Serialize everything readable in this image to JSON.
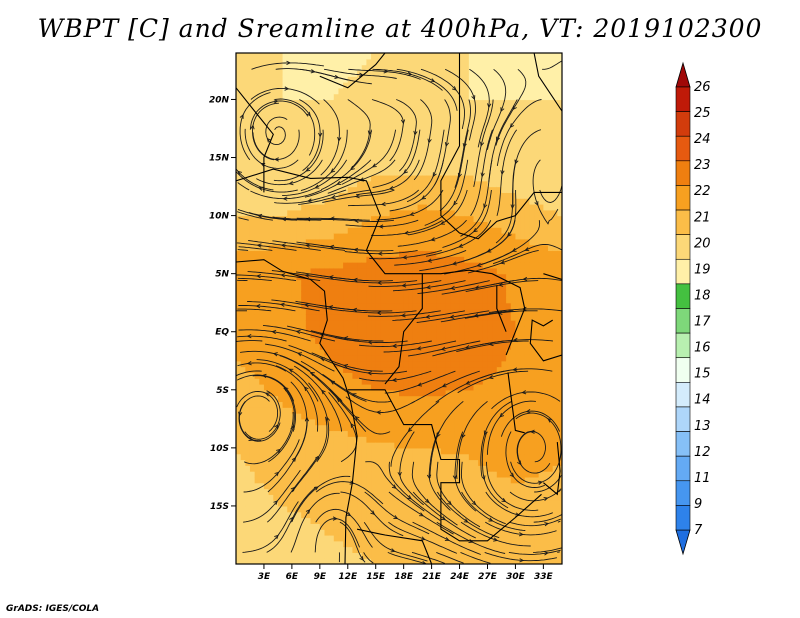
{
  "title": "WBPT [C] and Sreamline at 400hPa, VT: 2019102300",
  "credit": "GrADS: IGES/COLA",
  "chart_data": {
    "type": "heatmap",
    "title": "WBPT [C] and Sreamline at 400hPa, VT: 2019102300",
    "variable": "Wet-bulb potential temperature",
    "units": "C",
    "level": "400hPa",
    "valid_time": "2019102300",
    "xlim": [
      0,
      35
    ],
    "ylim": [
      -20,
      24
    ],
    "x_ticks": [
      {
        "value": 3,
        "label": "3E"
      },
      {
        "value": 6,
        "label": "6E"
      },
      {
        "value": 9,
        "label": "9E"
      },
      {
        "value": 12,
        "label": "12E"
      },
      {
        "value": 15,
        "label": "15E"
      },
      {
        "value": 18,
        "label": "18E"
      },
      {
        "value": 21,
        "label": "21E"
      },
      {
        "value": 24,
        "label": "24E"
      },
      {
        "value": 27,
        "label": "27E"
      },
      {
        "value": 30,
        "label": "30E"
      },
      {
        "value": 33,
        "label": "33E"
      }
    ],
    "y_ticks": [
      {
        "value": 20,
        "label": "20N"
      },
      {
        "value": 15,
        "label": "15N"
      },
      {
        "value": 10,
        "label": "10N"
      },
      {
        "value": 5,
        "label": "5N"
      },
      {
        "value": 0,
        "label": "EQ"
      },
      {
        "value": -5,
        "label": "5S"
      },
      {
        "value": -10,
        "label": "10S"
      },
      {
        "value": -15,
        "label": "15S"
      }
    ],
    "colorbar": {
      "labels": [
        "7",
        "9",
        "11",
        "12",
        "13",
        "14",
        "15",
        "16",
        "17",
        "18",
        "19",
        "20",
        "21",
        "22",
        "23",
        "24",
        "25",
        "26"
      ],
      "colors": [
        "#1e6ee0",
        "#2e82ea",
        "#4696f0",
        "#64aaf4",
        "#86c0f7",
        "#aed6fa",
        "#d4ecfc",
        "#f0fff0",
        "#b8f0b0",
        "#7ed87a",
        "#44c040",
        "#fff0a8",
        "#fcd878",
        "#fbbd48",
        "#f7a020",
        "#ef7f10",
        "#e65a10",
        "#d23c0c",
        "#bf1a08",
        "#a00808"
      ],
      "under_color": "#1e6ee0",
      "over_color": "#a00808"
    },
    "field_grid": {
      "lon": [
        0,
        5,
        10,
        15,
        20,
        25,
        30,
        35
      ],
      "lat": [
        24,
        20,
        15,
        10,
        5,
        0,
        -5,
        -10,
        -15,
        -20
      ],
      "values": [
        [
          20.0,
          20.0,
          19.8,
          20.0,
          20.0,
          20.0,
          19.6,
          19.8
        ],
        [
          20.0,
          20.0,
          20.0,
          20.2,
          20.2,
          20.0,
          20.0,
          20.0
        ],
        [
          20.3,
          20.3,
          20.2,
          20.5,
          20.5,
          20.5,
          20.0,
          20.0
        ],
        [
          21.0,
          21.0,
          21.3,
          22.0,
          22.3,
          22.0,
          21.5,
          21.0
        ],
        [
          22.6,
          22.9,
          23.2,
          23.4,
          23.5,
          23.3,
          22.9,
          22.6
        ],
        [
          22.4,
          22.8,
          23.2,
          23.4,
          23.4,
          23.3,
          23.0,
          22.6
        ],
        [
          21.6,
          22.2,
          22.8,
          23.0,
          23.1,
          23.0,
          22.9,
          22.4
        ],
        [
          21.0,
          21.3,
          21.6,
          21.9,
          22.0,
          22.1,
          22.6,
          22.2
        ],
        [
          20.8,
          21.0,
          21.1,
          21.2,
          21.3,
          21.4,
          21.6,
          21.4
        ],
        [
          20.6,
          20.7,
          20.9,
          21.0,
          21.0,
          21.0,
          21.1,
          21.1
        ]
      ]
    },
    "streamline_overlay": true,
    "coastlines": true
  }
}
